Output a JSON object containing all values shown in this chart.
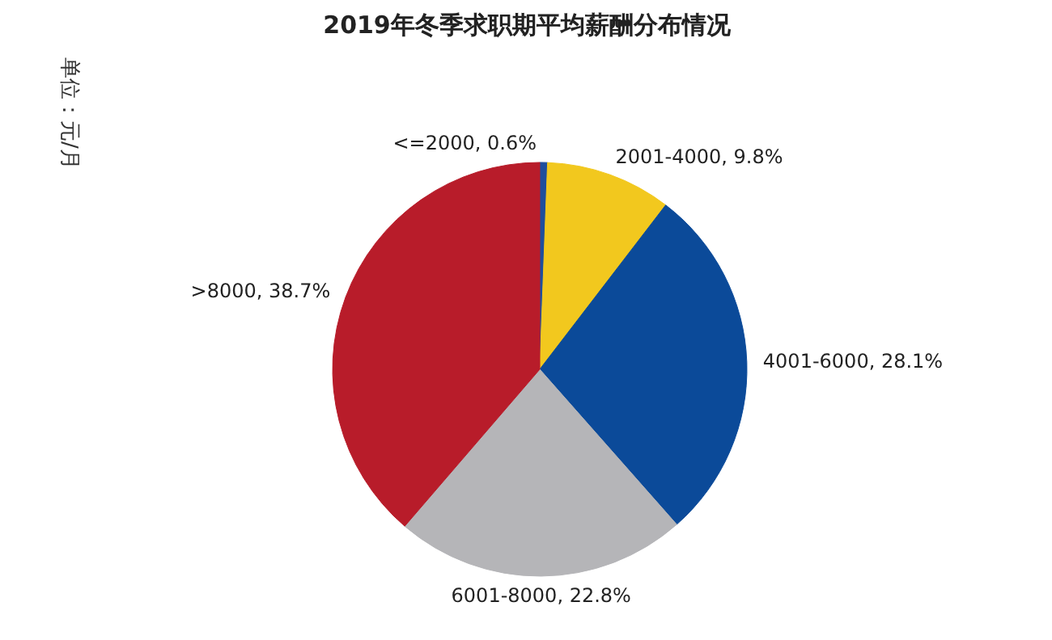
{
  "chart_data": {
    "type": "pie",
    "title": "2019年冬季求职期平均薪酬分布情况",
    "annotations": [
      "单位：元/月"
    ],
    "categories": [
      "<=2000",
      "2001-4000",
      "4001-6000",
      "6001-8000",
      ">8000"
    ],
    "values": [
      0.6,
      9.8,
      28.1,
      22.8,
      38.7
    ],
    "colors": [
      "#1f4e9c",
      "#f2c81e",
      "#0b4a99",
      "#b5b5b8",
      "#b81c2a"
    ],
    "value_labels": [
      "0.6%",
      "9.8%",
      "28.1%",
      "22.8%",
      "38.7%"
    ]
  }
}
